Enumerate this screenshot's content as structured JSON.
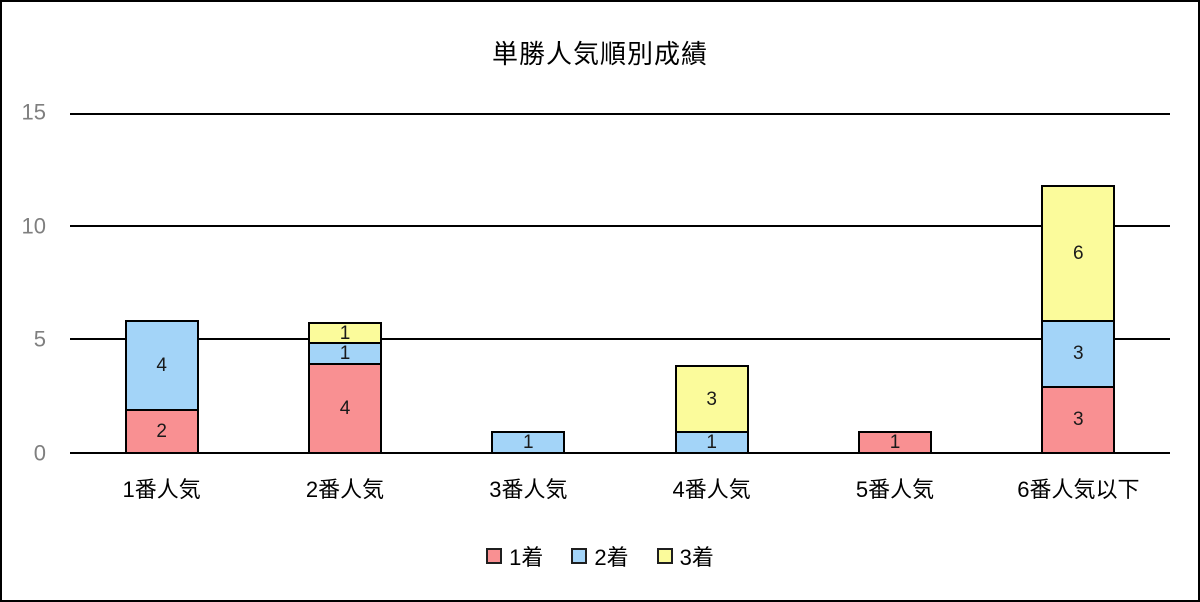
{
  "frame": {
    "background": "#ffffff",
    "border_color": "#000000"
  },
  "chart_data": {
    "type": "bar",
    "stacked": true,
    "title": "単勝人気順別成績",
    "categories": [
      "1番人気",
      "2番人気",
      "3番人気",
      "4番人気",
      "5番人気",
      "6番人気以下"
    ],
    "series": [
      {
        "name": "1着",
        "color": "#F99092",
        "values": [
          2,
          4,
          0,
          0,
          1,
          3
        ]
      },
      {
        "name": "2着",
        "color": "#A3D4F8",
        "values": [
          4,
          1,
          1,
          1,
          0,
          3
        ]
      },
      {
        "name": "3着",
        "color": "#FBFB9B",
        "values": [
          0,
          1,
          0,
          3,
          0,
          6
        ]
      }
    ],
    "stack_totals": [
      6,
      6,
      1,
      4,
      1,
      12
    ],
    "xlabel": "",
    "ylabel": "",
    "ylim": [
      0,
      15
    ],
    "yticks": [
      0,
      5,
      10,
      15
    ],
    "grid": true,
    "gridline_color": "#000000",
    "bar_border_color": "#000000",
    "tick_label_color": "#7f7f7f",
    "segment_labels_shown": true,
    "legend_position": "bottom"
  }
}
